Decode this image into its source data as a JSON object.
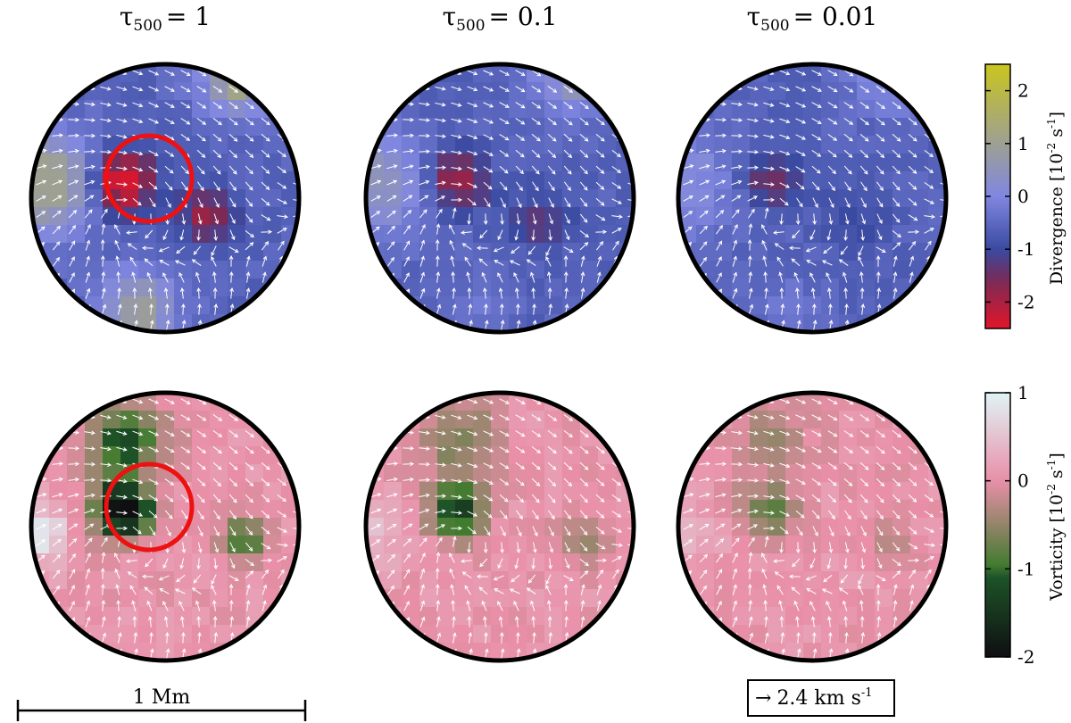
{
  "figure": {
    "columns": [
      {
        "tau_symbol": "τ",
        "tau_subscript": "500",
        "tau_value": "= 1"
      },
      {
        "tau_symbol": "τ",
        "tau_subscript": "500",
        "tau_value": "= 0.1"
      },
      {
        "tau_symbol": "τ",
        "tau_subscript": "500",
        "tau_value": "= 0.01"
      }
    ],
    "scale_bar_label": "1 Mm",
    "velocity_key_arrow": "→",
    "velocity_key_label": "2.4 km s",
    "velocity_key_exp": "-1",
    "colors": {
      "divergence_positive": "#c9c51e",
      "divergence_zero": "#8087e0",
      "divergence_negative": "#e3152a",
      "vorticity_positive": "#dff4f6",
      "vorticity_zero": "#e98fa8",
      "vorticity_negative": "#0f0f12",
      "vortex_marker": "#ee1111",
      "vector": "#ffffff"
    }
  },
  "chart_data": [
    {
      "type": "heatmap",
      "quantity": "divergence",
      "panels": [
        "τ500 = 1",
        "τ500 = 0.1",
        "τ500 = 0.01"
      ],
      "colorbar": {
        "label": "Divergence [10",
        "label_exp": "-2",
        "label_tail": " s",
        "label_tail_exp": "-1",
        "label_close": "]",
        "range": [
          -2.5,
          2.5
        ],
        "ticks": [
          2,
          1,
          0,
          -1,
          -2
        ],
        "tick_labels": [
          "2",
          "1",
          "0",
          "-1",
          "-2"
        ]
      },
      "vortex_marker": "circle on τ500 = 1 panel"
    },
    {
      "type": "heatmap",
      "quantity": "vorticity",
      "panels": [
        "τ500 = 1",
        "τ500 = 0.1",
        "τ500 = 0.01"
      ],
      "colorbar": {
        "label": "Vorticity [10",
        "label_exp": "-2",
        "label_tail": " s",
        "label_tail_exp": "-1",
        "label_close": "]",
        "range": [
          -2,
          1
        ],
        "ticks": [
          1,
          0,
          -1,
          -2
        ],
        "tick_labels": [
          "1",
          "0",
          "-1",
          "-2"
        ]
      },
      "vortex_marker": "circle on τ500 = 1 panel"
    }
  ]
}
